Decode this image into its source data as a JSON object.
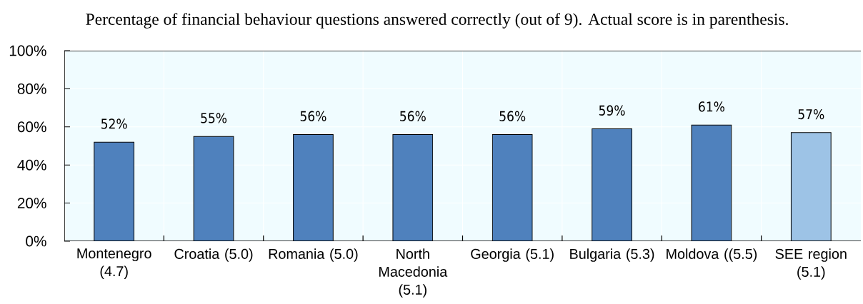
{
  "chart_data": {
    "type": "bar",
    "title": "Percentage of financial behaviour questions answered correctly (out of 9). Actual score is in parenthesis.",
    "categories": [
      "Montenegro (4.7)",
      "Croatia (5.0)",
      "Romania (5.0)",
      "North Macedonia (5.1)",
      "Georgia (5.1)",
      "Bulgaria (5.3)",
      "Moldova ((5.5)",
      "SEE region (5.1)"
    ],
    "values": [
      52,
      55,
      56,
      56,
      56,
      59,
      61,
      57
    ],
    "colors": [
      "#4f81bd",
      "#4f81bd",
      "#4f81bd",
      "#4f81bd",
      "#4f81bd",
      "#4f81bd",
      "#4f81bd",
      "#9dc3e6"
    ],
    "value_labels": [
      "52%",
      "55%",
      "56%",
      "56%",
      "56%",
      "59%",
      "61%",
      "57%"
    ],
    "ylim": [
      0,
      100
    ],
    "yticks": [
      {
        "value": 0,
        "label": "0%"
      },
      {
        "value": 20,
        "label": "20%"
      },
      {
        "value": 40,
        "label": "40%"
      },
      {
        "value": 60,
        "label": "60%"
      },
      {
        "value": 80,
        "label": "80%"
      },
      {
        "value": 100,
        "label": "100%"
      }
    ],
    "grid": true
  }
}
